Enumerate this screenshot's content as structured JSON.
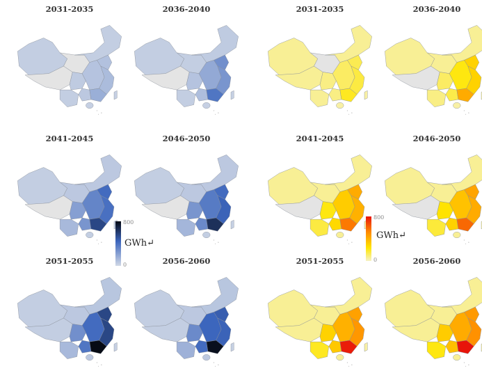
{
  "periods": [
    "2031-2035",
    "2036-2040",
    "2041-2045",
    "2046-2050",
    "2051-2055",
    "2056-2060"
  ],
  "legend_blue": {
    "max": "800",
    "min": "0",
    "unit": "GWh↵",
    "colors": [
      "#d0d8e6",
      "#3c66bd",
      "#060a14"
    ]
  },
  "legend_heat": {
    "max": "800",
    "min": "0",
    "unit": "GWh↵",
    "colors": [
      "#f6f2c6",
      "#ffe600",
      "#ff8a00",
      "#e8140a"
    ]
  },
  "regions": [
    "xinjiang",
    "tibet",
    "qinghai-gansu",
    "north",
    "sichuan",
    "yunnan",
    "central",
    "north-china-plain",
    "east-coast",
    "guangxi",
    "guangdong",
    "hainan",
    "taiwan"
  ],
  "blue_maps": [
    {
      "period": "2031-2035",
      "values": [
        40,
        null,
        null,
        40,
        50,
        40,
        80,
        90,
        110,
        60,
        160,
        30,
        30
      ]
    },
    {
      "period": "2036-2040",
      "values": [
        40,
        null,
        40,
        50,
        80,
        40,
        180,
        280,
        260,
        100,
        380,
        30,
        30
      ]
    },
    {
      "period": "2041-2045",
      "values": [
        40,
        null,
        60,
        60,
        220,
        120,
        320,
        420,
        400,
        260,
        560,
        40,
        30
      ]
    },
    {
      "period": "2046-2050",
      "values": [
        40,
        null,
        60,
        60,
        260,
        130,
        360,
        420,
        450,
        300,
        650,
        40,
        30
      ]
    },
    {
      "period": "2051-2055",
      "values": [
        40,
        40,
        60,
        70,
        280,
        120,
        420,
        560,
        560,
        380,
        800,
        60,
        30
      ]
    },
    {
      "period": "2056-2060",
      "values": [
        40,
        40,
        60,
        70,
        300,
        150,
        440,
        470,
        450,
        420,
        780,
        60,
        30
      ]
    }
  ],
  "heat_maps": [
    {
      "period": "2031-2035",
      "values": [
        60,
        60,
        null,
        60,
        80,
        60,
        120,
        140,
        160,
        80,
        200,
        40,
        40
      ]
    },
    {
      "period": "2036-2040",
      "values": [
        60,
        null,
        60,
        60,
        120,
        80,
        220,
        300,
        300,
        150,
        420,
        40,
        40
      ]
    },
    {
      "period": "2041-2045",
      "values": [
        60,
        null,
        60,
        60,
        220,
        160,
        320,
        420,
        400,
        280,
        560,
        60,
        40
      ]
    },
    {
      "period": "2046-2050",
      "values": [
        60,
        null,
        60,
        60,
        250,
        170,
        350,
        440,
        420,
        300,
        600,
        60,
        40
      ]
    },
    {
      "period": "2051-2055",
      "values": [
        60,
        60,
        60,
        60,
        300,
        200,
        400,
        450,
        480,
        330,
        780,
        60,
        40
      ]
    },
    {
      "period": "2056-2060",
      "values": [
        60,
        60,
        60,
        60,
        320,
        220,
        420,
        470,
        500,
        360,
        800,
        60,
        40
      ]
    }
  ]
}
